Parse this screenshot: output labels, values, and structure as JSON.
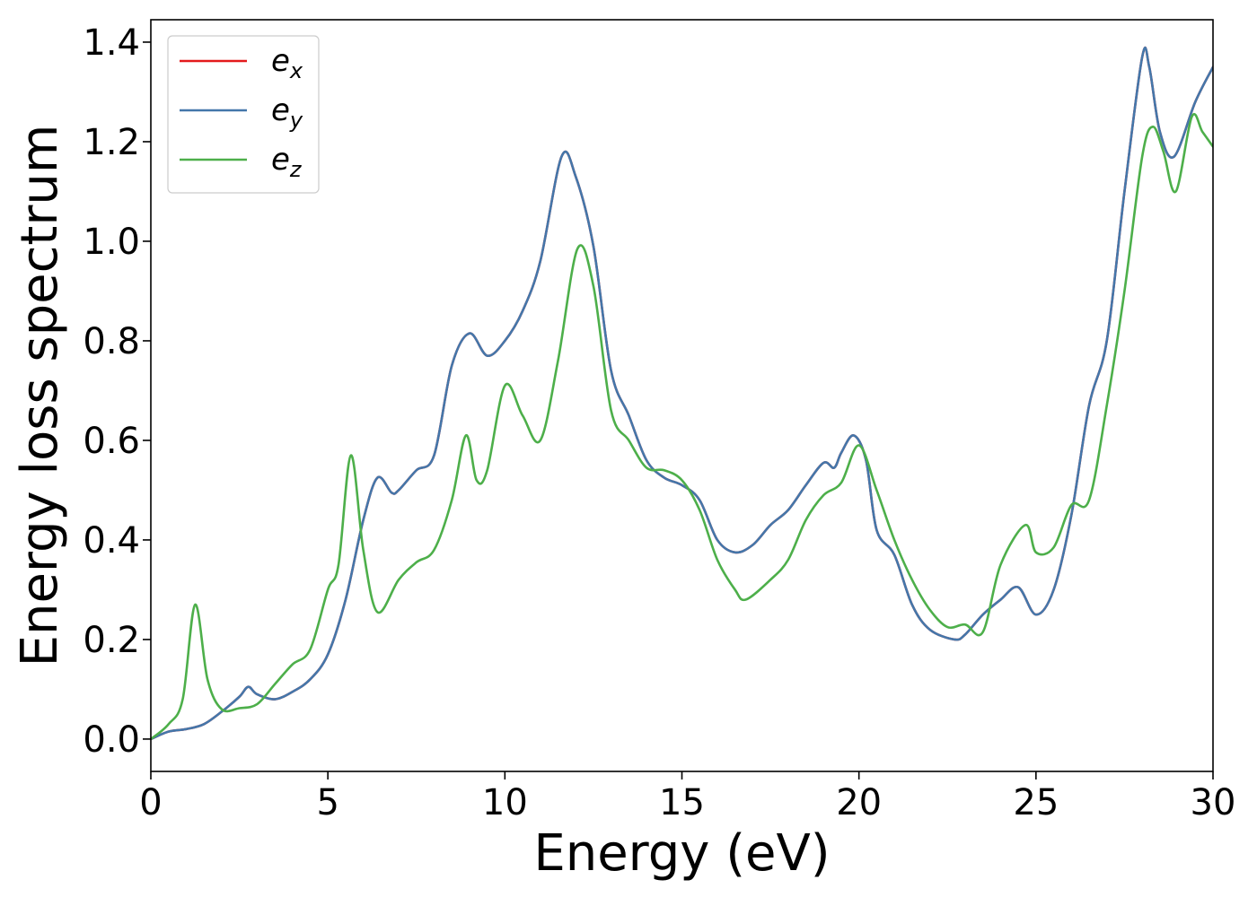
{
  "chart_data": {
    "type": "line",
    "xlabel": "Energy (eV)",
    "ylabel": "Energy loss spectrum",
    "xlim": [
      0,
      30
    ],
    "ylim": [
      -0.065,
      1.445
    ],
    "xticks": [
      0,
      5,
      10,
      15,
      20,
      25,
      30
    ],
    "xtick_labels": [
      "0",
      "5",
      "10",
      "15",
      "20",
      "25",
      "30"
    ],
    "yticks": [
      0.0,
      0.2,
      0.4,
      0.6,
      0.8,
      1.0,
      1.2,
      1.4
    ],
    "ytick_labels": [
      "0.0",
      "0.2",
      "0.4",
      "0.6",
      "0.8",
      "1.0",
      "1.2",
      "1.4"
    ],
    "grid": false,
    "legend_position": "top-left",
    "series": [
      {
        "name": "e_x",
        "legend_base": "e",
        "legend_sub": "x",
        "color": "#e41a1c",
        "x": [
          0,
          0.5,
          1.0,
          1.5,
          2.0,
          2.5,
          2.75,
          3.0,
          3.5,
          4.0,
          4.5,
          5.0,
          5.5,
          6.0,
          6.4,
          6.8,
          7.0,
          7.5,
          8.0,
          8.5,
          9.0,
          9.5,
          10.0,
          10.5,
          11.0,
          11.6,
          12.0,
          12.5,
          13.0,
          13.5,
          14.0,
          14.5,
          15.0,
          15.5,
          16.0,
          16.5,
          17.0,
          17.5,
          18.0,
          18.5,
          19.0,
          19.3,
          19.5,
          19.85,
          20.2,
          20.5,
          21.0,
          21.5,
          22.0,
          22.7,
          23.0,
          23.5,
          24.0,
          24.5,
          25.0,
          25.5,
          26.0,
          26.5,
          27.0,
          27.5,
          28.0,
          28.2,
          28.5,
          28.9,
          29.5,
          30.0
        ],
        "y": [
          0.0,
          0.015,
          0.02,
          0.03,
          0.055,
          0.085,
          0.105,
          0.09,
          0.08,
          0.095,
          0.12,
          0.17,
          0.28,
          0.44,
          0.525,
          0.495,
          0.5,
          0.54,
          0.57,
          0.75,
          0.815,
          0.77,
          0.8,
          0.86,
          0.96,
          1.17,
          1.13,
          0.99,
          0.74,
          0.65,
          0.56,
          0.525,
          0.51,
          0.48,
          0.4,
          0.375,
          0.39,
          0.43,
          0.46,
          0.51,
          0.555,
          0.545,
          0.575,
          0.61,
          0.56,
          0.42,
          0.37,
          0.27,
          0.22,
          0.2,
          0.21,
          0.25,
          0.28,
          0.305,
          0.25,
          0.3,
          0.45,
          0.67,
          0.8,
          1.1,
          1.37,
          1.35,
          1.22,
          1.17,
          1.28,
          1.35
        ]
      },
      {
        "name": "e_y",
        "legend_base": "e",
        "legend_sub": "y",
        "color": "#4477aa",
        "x": [
          0,
          0.5,
          1.0,
          1.5,
          2.0,
          2.5,
          2.75,
          3.0,
          3.5,
          4.0,
          4.5,
          5.0,
          5.5,
          6.0,
          6.4,
          6.8,
          7.0,
          7.5,
          8.0,
          8.5,
          9.0,
          9.5,
          10.0,
          10.5,
          11.0,
          11.6,
          12.0,
          12.5,
          13.0,
          13.5,
          14.0,
          14.5,
          15.0,
          15.5,
          16.0,
          16.5,
          17.0,
          17.5,
          18.0,
          18.5,
          19.0,
          19.3,
          19.5,
          19.85,
          20.2,
          20.5,
          21.0,
          21.5,
          22.0,
          22.7,
          23.0,
          23.5,
          24.0,
          24.5,
          25.0,
          25.5,
          26.0,
          26.5,
          27.0,
          27.5,
          28.0,
          28.2,
          28.5,
          28.9,
          29.5,
          30.0
        ],
        "y": [
          0.0,
          0.015,
          0.02,
          0.03,
          0.055,
          0.085,
          0.105,
          0.09,
          0.08,
          0.095,
          0.12,
          0.17,
          0.28,
          0.44,
          0.525,
          0.495,
          0.5,
          0.54,
          0.57,
          0.75,
          0.815,
          0.77,
          0.8,
          0.86,
          0.96,
          1.17,
          1.13,
          0.99,
          0.74,
          0.65,
          0.56,
          0.525,
          0.51,
          0.48,
          0.4,
          0.375,
          0.39,
          0.43,
          0.46,
          0.51,
          0.555,
          0.545,
          0.575,
          0.61,
          0.56,
          0.42,
          0.37,
          0.27,
          0.22,
          0.2,
          0.21,
          0.25,
          0.28,
          0.305,
          0.25,
          0.3,
          0.45,
          0.67,
          0.8,
          1.1,
          1.37,
          1.35,
          1.22,
          1.17,
          1.28,
          1.35
        ]
      },
      {
        "name": "e_z",
        "legend_base": "e",
        "legend_sub": "z",
        "color": "#4daf4a",
        "x": [
          0,
          0.5,
          0.9,
          1.25,
          1.6,
          2.0,
          2.5,
          3.0,
          3.5,
          4.0,
          4.5,
          5.0,
          5.3,
          5.65,
          6.0,
          6.4,
          7.0,
          7.5,
          8.0,
          8.5,
          8.9,
          9.2,
          9.5,
          10.0,
          10.5,
          11.0,
          11.5,
          12.05,
          12.5,
          13.0,
          13.5,
          14.0,
          14.5,
          15.0,
          15.5,
          16.0,
          16.5,
          16.8,
          17.5,
          18.0,
          18.5,
          19.0,
          19.5,
          20.0,
          20.5,
          21.0,
          21.5,
          22.0,
          22.5,
          23.0,
          23.5,
          24.0,
          24.7,
          25.0,
          25.5,
          26.0,
          26.5,
          27.0,
          27.5,
          28.0,
          28.3,
          28.6,
          28.95,
          29.4,
          29.7,
          30.0
        ],
        "y": [
          0.0,
          0.03,
          0.08,
          0.27,
          0.12,
          0.06,
          0.062,
          0.07,
          0.11,
          0.15,
          0.18,
          0.3,
          0.35,
          0.57,
          0.38,
          0.255,
          0.32,
          0.355,
          0.38,
          0.48,
          0.61,
          0.52,
          0.54,
          0.71,
          0.65,
          0.6,
          0.76,
          0.985,
          0.91,
          0.66,
          0.6,
          0.545,
          0.54,
          0.52,
          0.46,
          0.36,
          0.3,
          0.28,
          0.32,
          0.36,
          0.44,
          0.49,
          0.515,
          0.59,
          0.5,
          0.4,
          0.32,
          0.26,
          0.225,
          0.23,
          0.215,
          0.35,
          0.43,
          0.375,
          0.385,
          0.47,
          0.48,
          0.67,
          0.9,
          1.17,
          1.23,
          1.18,
          1.1,
          1.25,
          1.22,
          1.19
        ]
      }
    ]
  }
}
